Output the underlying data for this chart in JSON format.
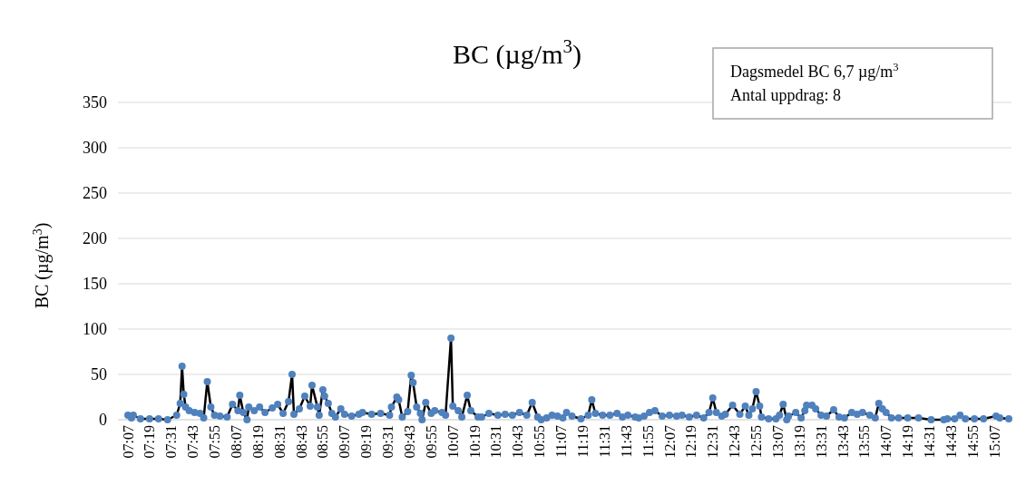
{
  "chart_data": {
    "type": "line",
    "title": "BC (µg/m$^{3}$)",
    "ylabel": "BC (µg/m$^{3}$)",
    "annotations": [
      "Dagsmedel BC 6,7 µg/m$^{3}$",
      "Antal uppdrag: 8"
    ],
    "marker": "circle",
    "grid": "y",
    "line_style": "solid",
    "xlim": [
      7.025,
      15.275
    ],
    "xticks": [
      {
        "value": 7.1167,
        "label": "07:07"
      },
      {
        "value": 7.3167,
        "label": "07:19"
      },
      {
        "value": 7.5167,
        "label": "07:31"
      },
      {
        "value": 7.7167,
        "label": "07:43"
      },
      {
        "value": 7.9167,
        "label": "07:55"
      },
      {
        "value": 8.1167,
        "label": "08:07"
      },
      {
        "value": 8.3167,
        "label": "08:19"
      },
      {
        "value": 8.5167,
        "label": "08:31"
      },
      {
        "value": 8.7167,
        "label": "08:43"
      },
      {
        "value": 8.9167,
        "label": "08:55"
      },
      {
        "value": 9.1167,
        "label": "09:07"
      },
      {
        "value": 9.3167,
        "label": "09:19"
      },
      {
        "value": 9.5167,
        "label": "09:31"
      },
      {
        "value": 9.7167,
        "label": "09:43"
      },
      {
        "value": 9.9167,
        "label": "09:55"
      },
      {
        "value": 10.1167,
        "label": "10:07"
      },
      {
        "value": 10.3167,
        "label": "10:19"
      },
      {
        "value": 10.5167,
        "label": "10:31"
      },
      {
        "value": 10.7167,
        "label": "10:43"
      },
      {
        "value": 10.9167,
        "label": "10:55"
      },
      {
        "value": 11.1167,
        "label": "11:07"
      },
      {
        "value": 11.3167,
        "label": "11:19"
      },
      {
        "value": 11.5167,
        "label": "11:31"
      },
      {
        "value": 11.7167,
        "label": "11:43"
      },
      {
        "value": 11.9167,
        "label": "11:55"
      },
      {
        "value": 12.1167,
        "label": "12:07"
      },
      {
        "value": 12.3167,
        "label": "12:19"
      },
      {
        "value": 12.5167,
        "label": "12:31"
      },
      {
        "value": 12.7167,
        "label": "12:43"
      },
      {
        "value": 12.9167,
        "label": "12:55"
      },
      {
        "value": 13.1167,
        "label": "13:07"
      },
      {
        "value": 13.3167,
        "label": "13:19"
      },
      {
        "value": 13.5167,
        "label": "13:31"
      },
      {
        "value": 13.7167,
        "label": "13:43"
      },
      {
        "value": 13.9167,
        "label": "13:55"
      },
      {
        "value": 14.1167,
        "label": "14:07"
      },
      {
        "value": 14.3167,
        "label": "14:19"
      },
      {
        "value": 14.5167,
        "label": "14:31"
      },
      {
        "value": 14.7167,
        "label": "14:43"
      },
      {
        "value": 14.9167,
        "label": "14:55"
      },
      {
        "value": 15.1167,
        "label": "15:07"
      }
    ],
    "ylim": [
      0,
      350
    ],
    "yticks": [
      0,
      50,
      100,
      150,
      200,
      250,
      300,
      350
    ],
    "series": [
      {
        "color": "#4f81bd",
        "x": [
          7.117,
          7.15,
          7.167,
          7.233,
          7.317,
          7.4,
          7.483,
          7.567,
          7.6,
          7.617,
          7.633,
          7.65,
          7.683,
          7.733,
          7.783,
          7.817,
          7.85,
          7.883,
          7.917,
          7.967,
          8.033,
          8.083,
          8.133,
          8.15,
          8.183,
          8.217,
          8.233,
          8.283,
          8.333,
          8.383,
          8.45,
          8.5,
          8.55,
          8.6,
          8.633,
          8.65,
          8.7,
          8.75,
          8.8,
          8.817,
          8.867,
          8.883,
          8.917,
          8.933,
          8.967,
          9.0,
          9.033,
          9.083,
          9.117,
          9.183,
          9.25,
          9.283,
          9.367,
          9.45,
          9.533,
          9.55,
          9.6,
          9.617,
          9.65,
          9.7,
          9.733,
          9.75,
          9.783,
          9.817,
          9.833,
          9.867,
          9.917,
          9.95,
          10.017,
          10.05,
          10.1,
          10.117,
          10.167,
          10.2,
          10.25,
          10.283,
          10.35,
          10.383,
          10.45,
          10.533,
          10.6,
          10.667,
          10.733,
          10.8,
          10.85,
          10.9,
          10.933,
          10.983,
          11.033,
          11.083,
          11.133,
          11.167,
          11.217,
          11.3,
          11.367,
          11.4,
          11.433,
          11.5,
          11.567,
          11.633,
          11.683,
          11.733,
          11.8,
          11.833,
          11.883,
          11.933,
          11.983,
          12.05,
          12.117,
          12.183,
          12.233,
          12.3,
          12.367,
          12.433,
          12.483,
          12.517,
          12.55,
          12.6,
          12.633,
          12.7,
          12.767,
          12.817,
          12.85,
          12.883,
          12.917,
          12.95,
          12.967,
          13.033,
          13.1,
          13.133,
          13.167,
          13.2,
          13.217,
          13.283,
          13.333,
          13.367,
          13.383,
          13.433,
          13.467,
          13.517,
          13.567,
          13.633,
          13.683,
          13.733,
          13.8,
          13.85,
          13.9,
          13.967,
          14.017,
          14.05,
          14.083,
          14.117,
          14.167,
          14.233,
          14.317,
          14.417,
          14.533,
          14.65,
          14.683,
          14.75,
          14.8,
          14.85,
          14.933,
          15.017,
          15.133,
          15.167,
          15.25
        ],
        "values": [
          5,
          2,
          5,
          1,
          1,
          1,
          0,
          5,
          18,
          59,
          28,
          14,
          10,
          8,
          7,
          2,
          42,
          14,
          5,
          4,
          3,
          17,
          10,
          27,
          8,
          0,
          14,
          10,
          14,
          8,
          13,
          17,
          7,
          20,
          50,
          6,
          12,
          26,
          15,
          38,
          14,
          5,
          33,
          26,
          18,
          7,
          3,
          12,
          6,
          4,
          6,
          8,
          6,
          7,
          5,
          14,
          25,
          22,
          3,
          9,
          49,
          41,
          14,
          7,
          0,
          19,
          7,
          10,
          8,
          5,
          90,
          15,
          10,
          3,
          27,
          10,
          3,
          3,
          7,
          5,
          6,
          5,
          8,
          5,
          19,
          3,
          0,
          2,
          5,
          4,
          2,
          8,
          4,
          1,
          5,
          22,
          7,
          5,
          5,
          7,
          3,
          5,
          3,
          2,
          4,
          8,
          10,
          4,
          5,
          4,
          5,
          3,
          5,
          2,
          8,
          24,
          8,
          4,
          6,
          16,
          6,
          15,
          5,
          12,
          31,
          15,
          3,
          1,
          1,
          5,
          17,
          0,
          4,
          8,
          2,
          10,
          16,
          16,
          12,
          5,
          4,
          11,
          3,
          2,
          8,
          6,
          8,
          5,
          2,
          18,
          12,
          8,
          2,
          2,
          2,
          2,
          0,
          0,
          1,
          1,
          5,
          1,
          1,
          1,
          4,
          2,
          1
        ]
      }
    ]
  }
}
